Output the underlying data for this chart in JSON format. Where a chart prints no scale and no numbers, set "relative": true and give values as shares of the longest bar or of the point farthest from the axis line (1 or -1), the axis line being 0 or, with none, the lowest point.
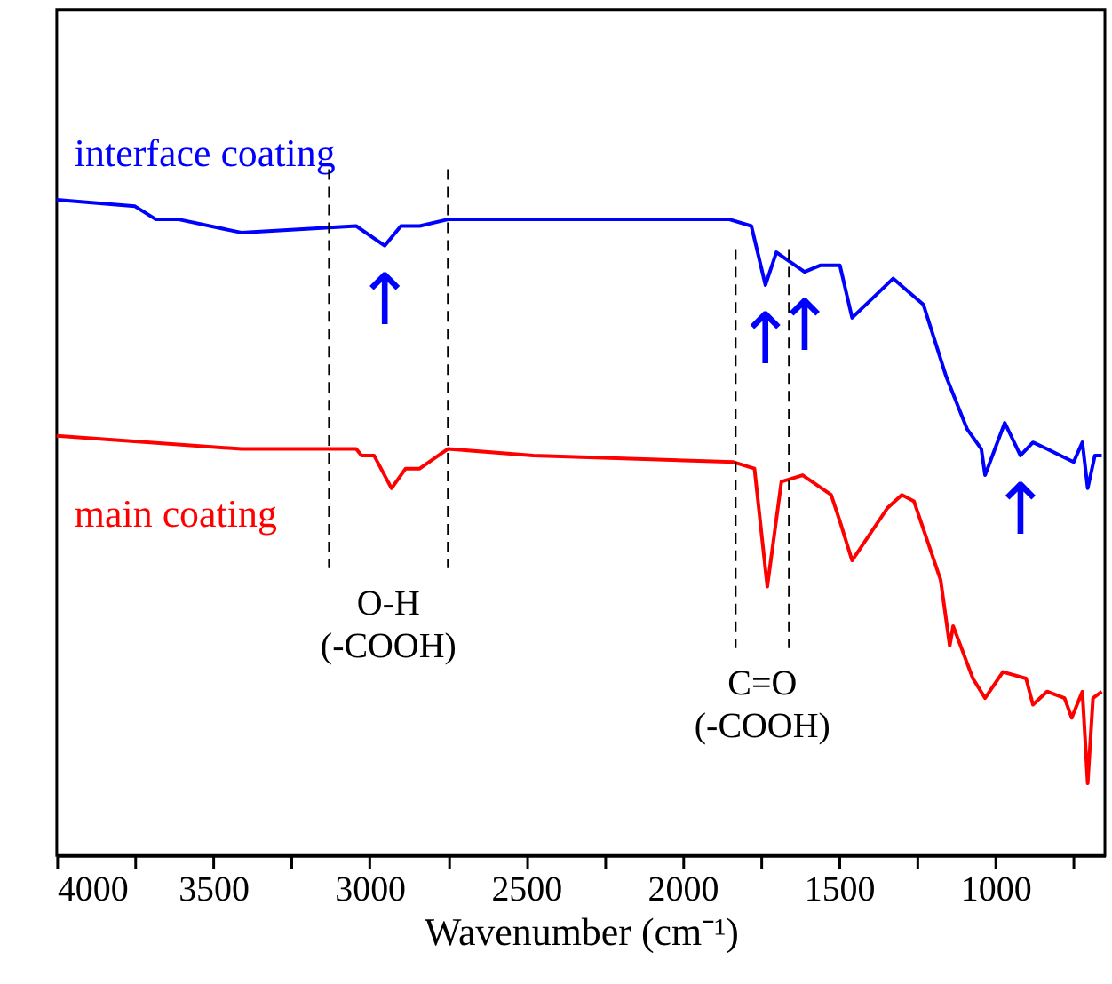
{
  "chart_data": {
    "type": "line",
    "relative": true,
    "xlabel": "Wavenumber (cm⁻¹)",
    "xlim": [
      4000,
      650
    ],
    "xticks": [
      4000,
      {
        "value": 3750,
        "label": null
      },
      3500,
      {
        "value": 3250,
        "label": null
      },
      3000,
      {
        "value": 2750,
        "label": null
      },
      2500,
      {
        "value": 2250,
        "label": null
      },
      2000,
      {
        "value": 1750,
        "label": null
      },
      1500,
      {
        "value": 1250,
        "label": null
      },
      1000,
      {
        "value": 750,
        "label": null
      }
    ],
    "grid": false,
    "marker": "none",
    "line_style": "solid",
    "series": [
      {
        "name": "interface coating",
        "color": "#0000ff",
        "x": [
          4000,
          3750,
          3683,
          3610,
          3410,
          3043,
          2952,
          2900,
          2840,
          2750,
          2477,
          2000,
          1850,
          1780,
          1735,
          1700,
          1610,
          1560,
          1497,
          1458,
          1327,
          1230,
          1157,
          1090,
          1045,
          1033,
          970,
          920,
          880,
          835,
          750,
          722,
          705,
          682,
          660
        ],
        "values": [
          1.0,
          0.99,
          0.97,
          0.97,
          0.95,
          0.96,
          0.93,
          0.96,
          0.96,
          0.97,
          0.97,
          0.97,
          0.97,
          0.96,
          0.87,
          0.92,
          0.89,
          0.9,
          0.9,
          0.82,
          0.88,
          0.84,
          0.73,
          0.65,
          0.62,
          0.58,
          0.66,
          0.61,
          0.63,
          0.62,
          0.6,
          0.63,
          0.56,
          0.61,
          0.61
        ]
      },
      {
        "name": "main coating",
        "color": "#ff0000",
        "x": [
          4000,
          3410,
          3128,
          3043,
          3026,
          2986,
          2930,
          2885,
          2840,
          2750,
          2477,
          1837,
          1770,
          1729,
          1684,
          1616,
          1525,
          1497,
          1458,
          1345,
          1299,
          1260,
          1175,
          1146,
          1135,
          1072,
          1033,
          976,
          902,
          880,
          835,
          779,
          756,
          722,
          705,
          688,
          660
        ],
        "values": [
          0.64,
          0.62,
          0.62,
          0.62,
          0.61,
          0.61,
          0.56,
          0.59,
          0.59,
          0.62,
          0.61,
          0.6,
          0.59,
          0.41,
          0.57,
          0.58,
          0.55,
          0.51,
          0.45,
          0.53,
          0.55,
          0.54,
          0.42,
          0.32,
          0.35,
          0.27,
          0.24,
          0.28,
          0.27,
          0.23,
          0.25,
          0.24,
          0.21,
          0.25,
          0.11,
          0.24,
          0.25
        ]
      }
    ],
    "ref_lines": [
      {
        "axis": "x",
        "value": 3130,
        "line_style": "dashed",
        "color": "#000000"
      },
      {
        "axis": "x",
        "value": 2750,
        "line_style": "dashed",
        "color": "#000000"
      },
      {
        "axis": "x",
        "value": 1830,
        "line_style": "dashed",
        "color": "#000000"
      },
      {
        "axis": "x",
        "value": 1660,
        "line_style": "dashed",
        "color": "#000000"
      }
    ],
    "annotations": [
      "O-H\n(-COOH)",
      "C=O\n(-COOH)",
      {
        "text": "↑",
        "x": 2952,
        "y": 0.93
      },
      {
        "text": "↑",
        "x": 1735,
        "y": 0.87
      },
      {
        "text": "↑",
        "x": 1610,
        "y": 0.89
      },
      {
        "text": "↑",
        "x": 920,
        "y": 0.61
      }
    ]
  }
}
